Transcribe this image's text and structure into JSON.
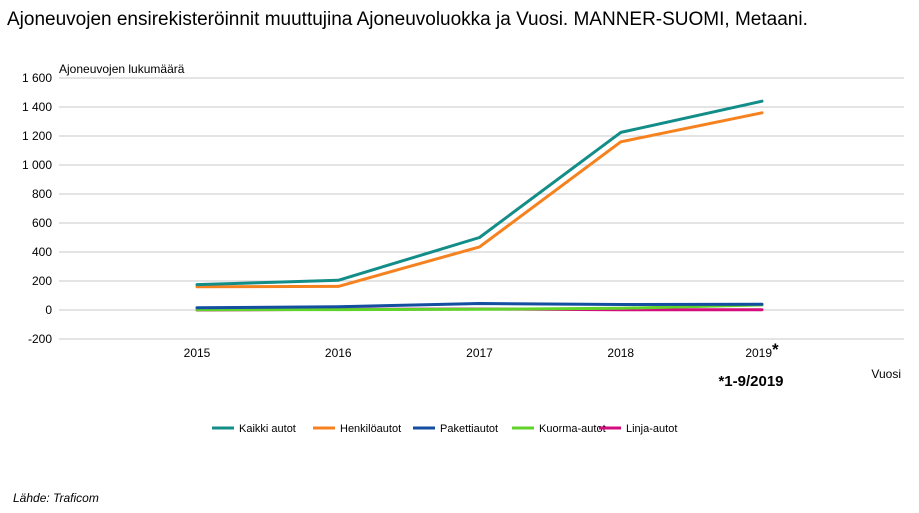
{
  "title": "Ajoneuvojen ensirekisteröinnit muuttujina Ajoneuvoluokka ja Vuosi. MANNER-SUOMI, Metaani.",
  "source": "Lähde: Traficom",
  "chart_data": {
    "type": "line",
    "title": "Ajoneuvojen ensirekisteröinnit muuttujina Ajoneuvoluokka ja Vuosi. MANNER-SUOMI, Metaani.",
    "xlabel": "Vuosi",
    "ylabel": "Ajoneuvojen lukumäärä",
    "categories": [
      "2015",
      "2016",
      "2017",
      "2018",
      "2019"
    ],
    "category_labels": [
      "2015",
      "2016",
      "2017",
      "2018",
      "2019*"
    ],
    "footnote": "*1-9/2019",
    "ylim": [
      -200,
      1600
    ],
    "yticks": [
      -200,
      0,
      200,
      400,
      600,
      800,
      1000,
      1200,
      1400,
      1600
    ],
    "ytick_labels": [
      "-200",
      "0",
      "200",
      "400",
      "600",
      "800",
      "1 000",
      "1 200",
      "1 400",
      "1 600"
    ],
    "grid": true,
    "legend": "bottom",
    "series": [
      {
        "name": "Kaikki autot",
        "color": "#138d88",
        "values": [
          175,
          205,
          500,
          1225,
          1440
        ]
      },
      {
        "name": "Henkilöautot",
        "color": "#f5821f",
        "values": [
          160,
          163,
          435,
          1160,
          1360
        ]
      },
      {
        "name": "Pakettiautot",
        "color": "#134ea0",
        "values": [
          15,
          22,
          45,
          38,
          40
        ]
      },
      {
        "name": "Kuorma-autot",
        "color": "#5fd32a",
        "values": [
          2,
          3,
          5,
          12,
          35
        ]
      },
      {
        "name": "Linja-autot",
        "color": "#d40d7d",
        "values": [
          0,
          5,
          7,
          2,
          2
        ]
      }
    ]
  }
}
